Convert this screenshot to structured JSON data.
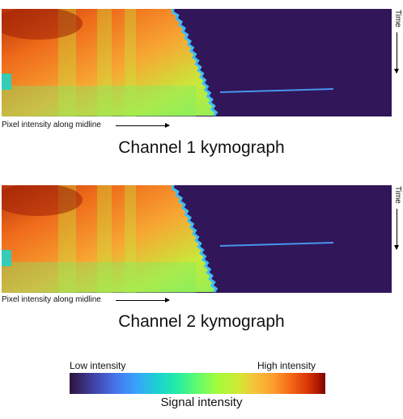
{
  "panels": [
    {
      "caption": "Channel 1 kymograph",
      "x_axis_label": "Pixel intensity along midline",
      "y_axis_label": "Time"
    },
    {
      "caption": "Channel 2 kymograph",
      "x_axis_label": "Pixel intensity along midline",
      "y_axis_label": "Time"
    }
  ],
  "colorbar": {
    "low_label": "Low intensity",
    "high_label": "High intensity",
    "title": "Signal intensity",
    "colormap": "turbo"
  },
  "colors": {
    "background_low": "#30123b",
    "high": "#7a0402"
  }
}
